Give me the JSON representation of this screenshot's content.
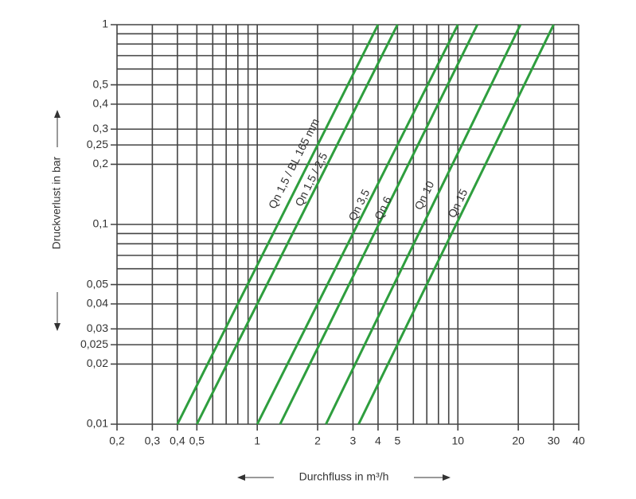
{
  "chart_data": {
    "type": "line",
    "log_x": true,
    "log_y": true,
    "grid": true,
    "xlabel": "Durchfluss in m³/h",
    "ylabel": "Druckverlust in bar",
    "xlim": [
      0.2,
      40
    ],
    "ylim": [
      0.01,
      1
    ],
    "xticks": [
      {
        "value": 0.2,
        "label": "0,2"
      },
      {
        "value": 0.3,
        "label": "0,3"
      },
      {
        "value": 0.4,
        "label": "0,4"
      },
      {
        "value": 0.5,
        "label": "0,5"
      },
      1,
      2,
      3,
      4,
      5,
      10,
      20,
      30,
      40
    ],
    "xgrid_minor": [
      0.6,
      0.7,
      0.8,
      0.9,
      6,
      7,
      8,
      9
    ],
    "yticks": [
      {
        "value": 0.01,
        "label": "0,01"
      },
      {
        "value": 0.02,
        "label": "0,02"
      },
      {
        "value": 0.025,
        "label": "0,025"
      },
      {
        "value": 0.03,
        "label": "0,03"
      },
      {
        "value": 0.04,
        "label": "0,04"
      },
      {
        "value": 0.05,
        "label": "0,05"
      },
      {
        "value": 0.1,
        "label": "0,1"
      },
      {
        "value": 0.2,
        "label": "0,2"
      },
      {
        "value": 0.25,
        "label": "0,25"
      },
      {
        "value": 0.3,
        "label": "0,3"
      },
      {
        "value": 0.4,
        "label": "0,4"
      },
      {
        "value": 0.5,
        "label": "0,5"
      },
      1
    ],
    "ygrid_minor": [
      0.06,
      0.07,
      0.08,
      0.09,
      0.6,
      0.7,
      0.8,
      0.9
    ],
    "series": [
      {
        "name": "Qn 1,5 / BL 165 mm",
        "color": "#2e9e3e",
        "x": [
          0.4,
          4
        ],
        "values": [
          0.01,
          1
        ]
      },
      {
        "name": "Qn 1,5 / 2,5",
        "color": "#2e9e3e",
        "x": [
          0.5,
          5
        ],
        "values": [
          0.01,
          1
        ]
      },
      {
        "name": "Qn 3,5",
        "color": "#2e9e3e",
        "x": [
          1,
          10
        ],
        "values": [
          0.01,
          1
        ]
      },
      {
        "name": "Qn 6",
        "color": "#2e9e3e",
        "x": [
          1.3,
          12.5
        ],
        "values": [
          0.01,
          1
        ]
      },
      {
        "name": "Qn 10",
        "color": "#2e9e3e",
        "x": [
          2.2,
          20.5
        ],
        "values": [
          0.01,
          1
        ]
      },
      {
        "name": "Qn 15",
        "color": "#2e9e3e",
        "x": [
          3.2,
          30
        ],
        "values": [
          0.01,
          1
        ]
      }
    ]
  }
}
